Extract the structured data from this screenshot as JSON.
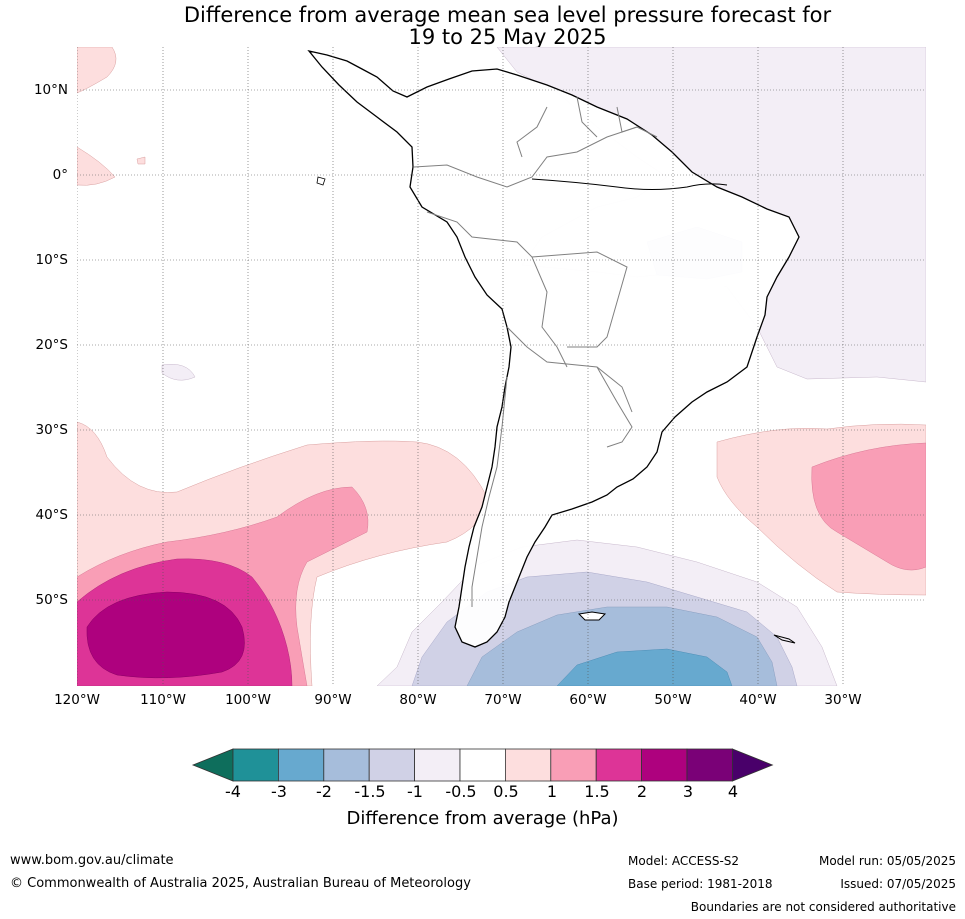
{
  "title_line1": "Difference from average mean sea level pressure forecast for",
  "title_line2": "19 to 25 May 2025",
  "lat_labels": [
    "10°N",
    "0°",
    "10°S",
    "20°S",
    "30°S",
    "40°S",
    "50°S"
  ],
  "lon_labels": [
    "120°W",
    "110°W",
    "100°W",
    "90°W",
    "80°W",
    "70°W",
    "60°W",
    "50°W",
    "40°W",
    "30°W"
  ],
  "colorbar": {
    "ticks": [
      "-4",
      "-3",
      "-2",
      "-1.5",
      "-1",
      "-0.5",
      "0.5",
      "1",
      "1.5",
      "2",
      "3",
      "4"
    ],
    "colors": [
      "#0e6e5c",
      "#1f9198",
      "#67a9cf",
      "#a6bddb",
      "#d0d1e6",
      "#f3eef6",
      "#ffffff",
      "#fddede",
      "#f99eb6",
      "#dd3497",
      "#ae017e",
      "#7a0177",
      "#49006a"
    ],
    "label": "Difference from average (hPa)"
  },
  "footer": {
    "url": "www.bom.gov.au/climate",
    "copyright": "© Commonwealth of Australia 2025, Australian Bureau of Meteorology",
    "model": "Model: ACCESS-S2",
    "base_period": "Base period: 1981-2018",
    "model_run": "Model run: 05/05/2025",
    "issued": "Issued: 07/05/2025",
    "disclaimer": "Boundaries are not considered authoritative"
  }
}
